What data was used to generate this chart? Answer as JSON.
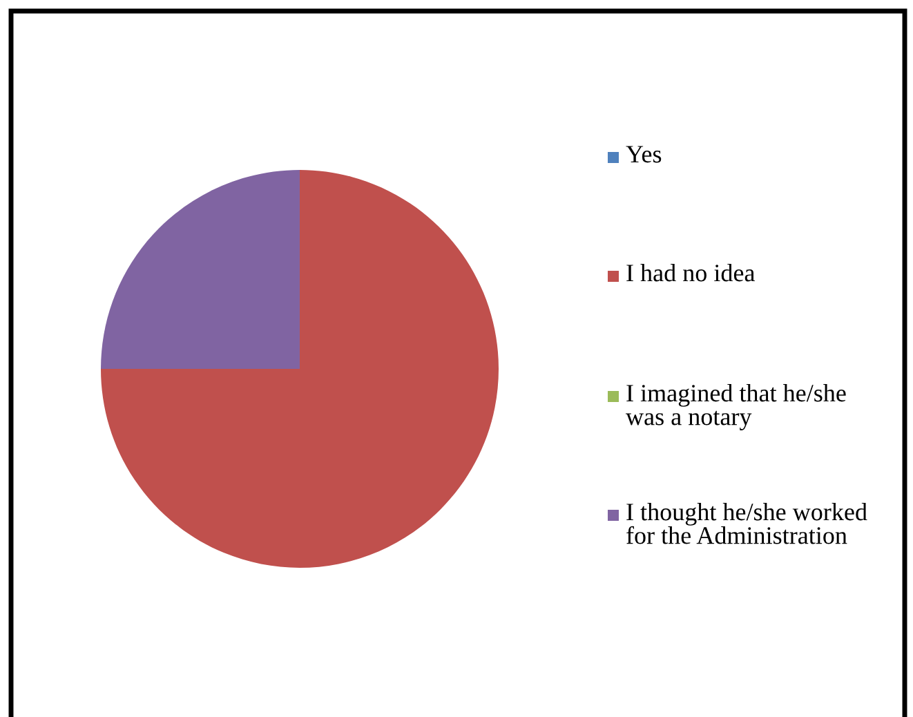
{
  "chart_data": {
    "type": "pie",
    "categories": [
      "Yes",
      "I had no idea",
      "I imagined that he/she was a notary",
      "I thought he/she worked for the Administration"
    ],
    "values": [
      0,
      75,
      0,
      25
    ],
    "colors": [
      "#4f81bd",
      "#c0504d",
      "#9bbb59",
      "#8064a2"
    ],
    "legend": "right"
  }
}
